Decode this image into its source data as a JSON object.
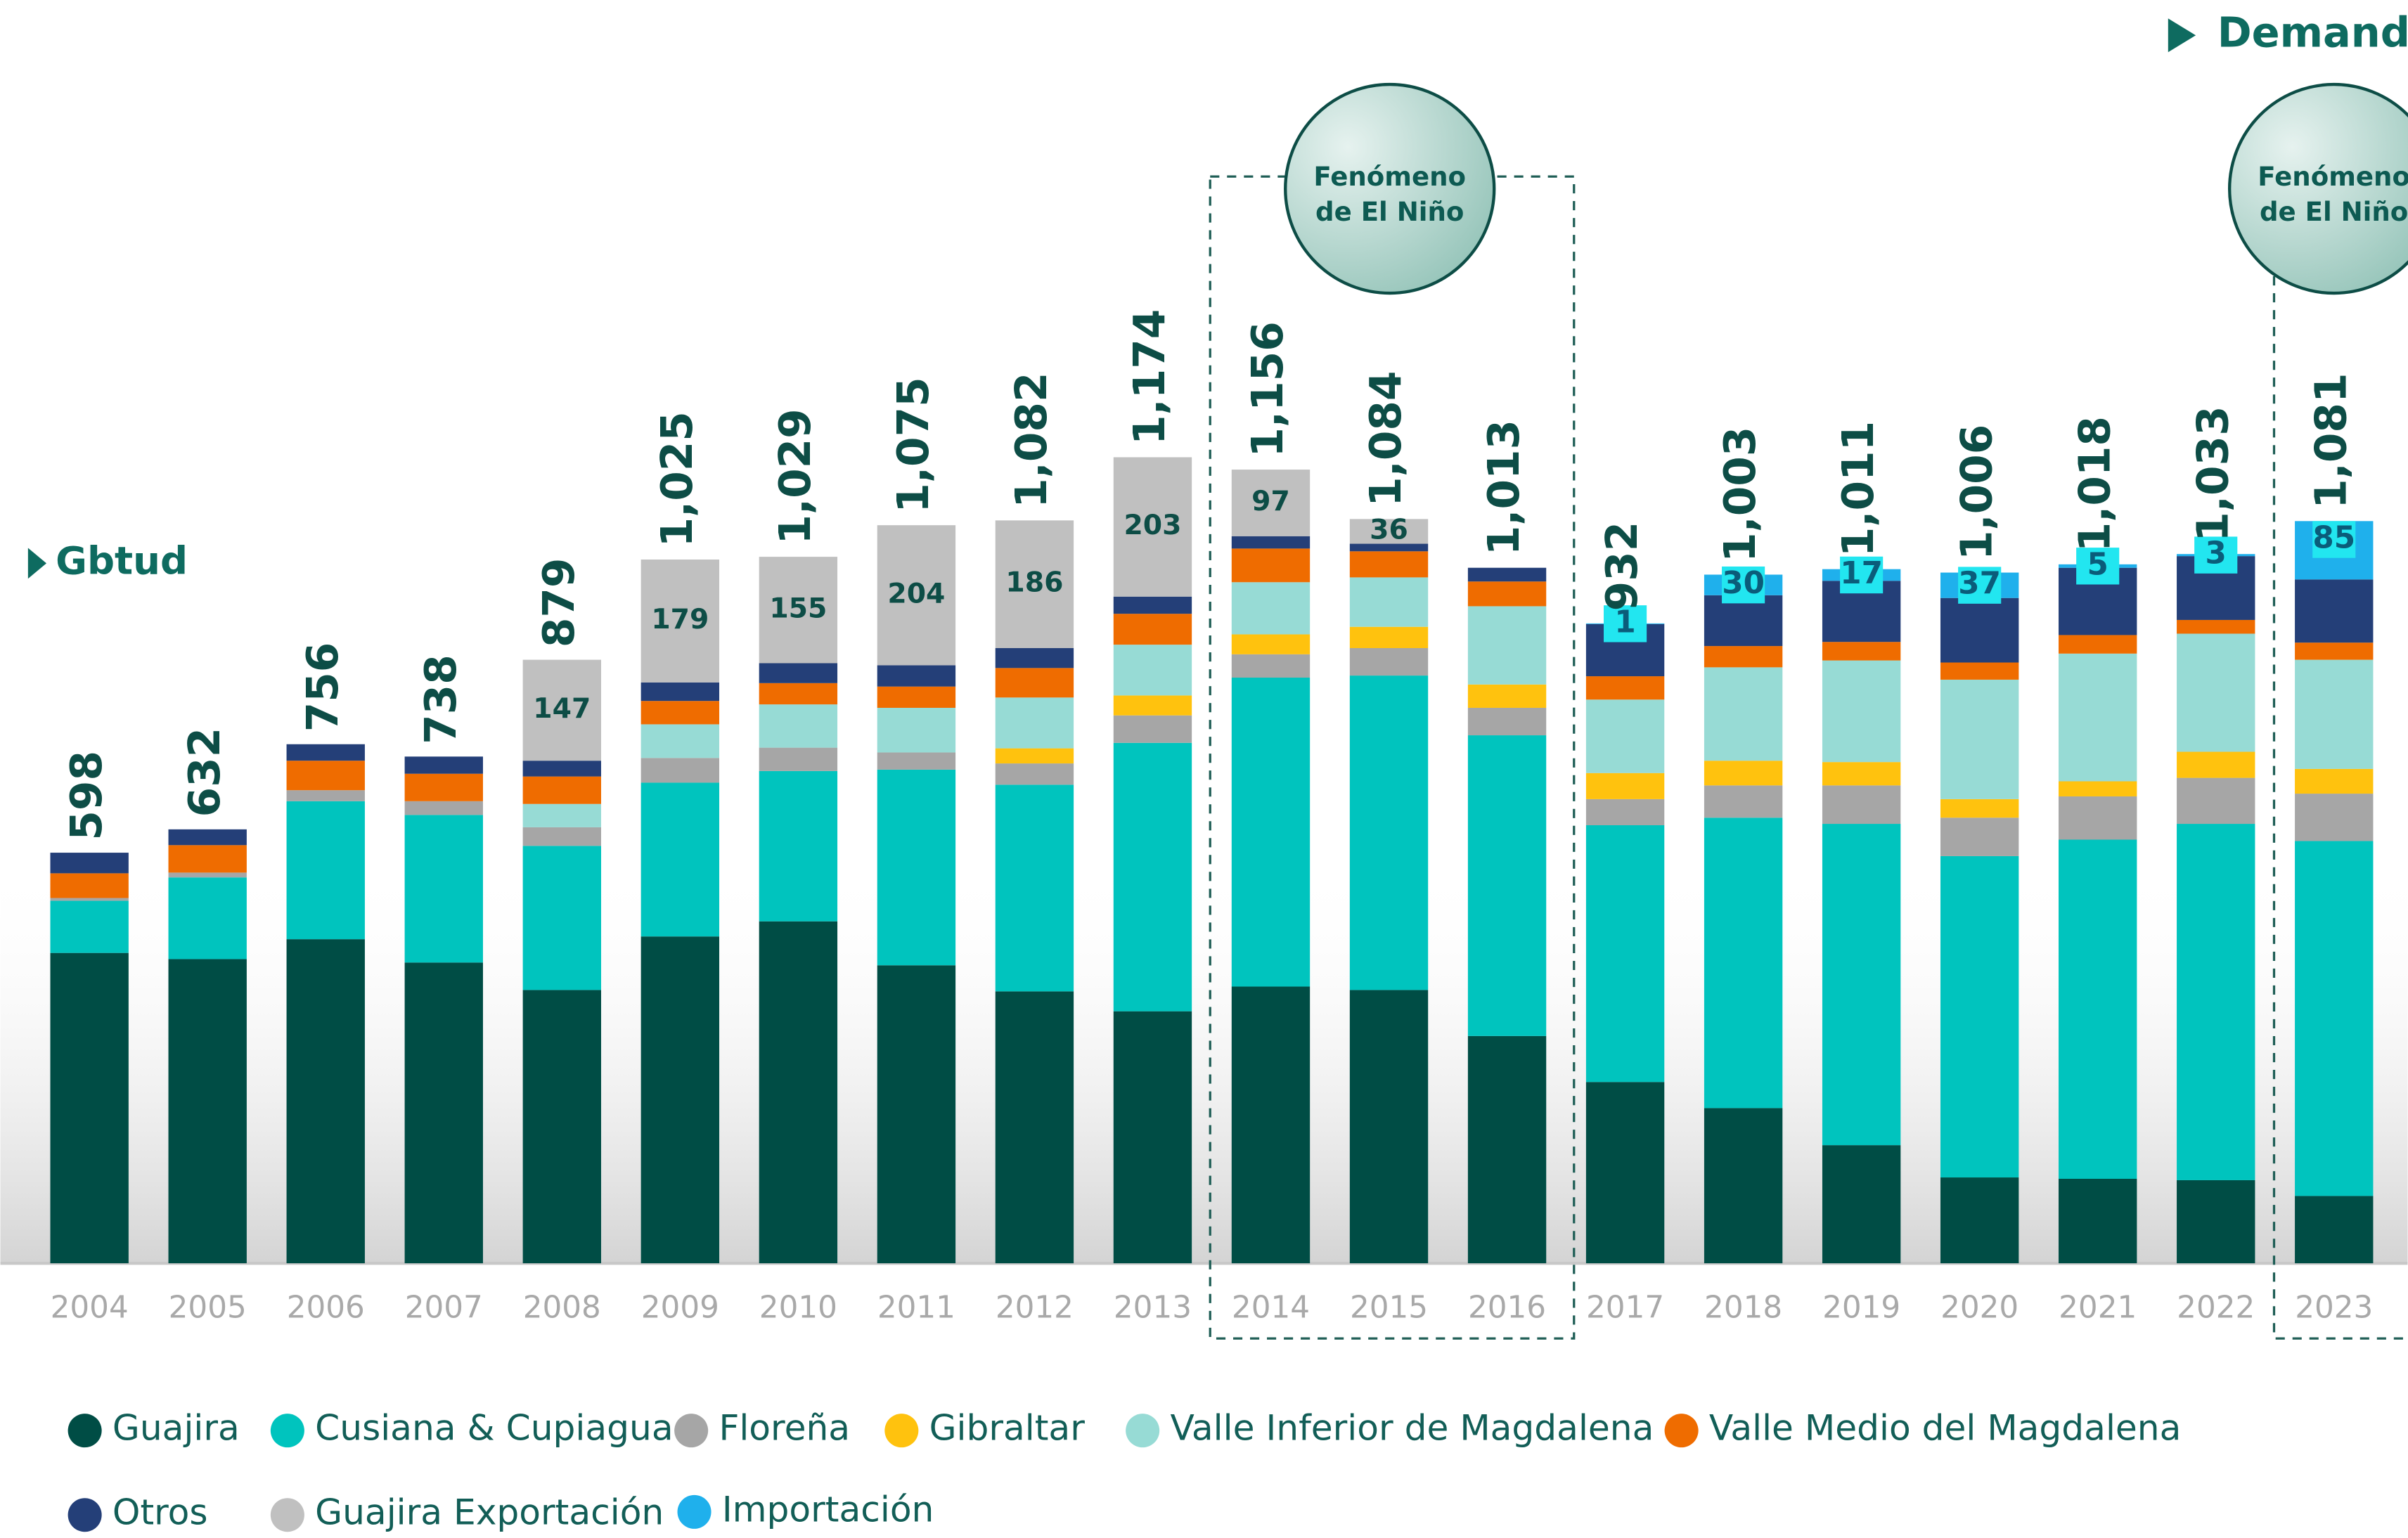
{
  "chart_data": {
    "type": "stacked_bar",
    "title": "Demanda",
    "unit_label": "Gbtud",
    "categories": [
      "2004",
      "2005",
      "2006",
      "2007",
      "2008",
      "2009",
      "2010",
      "2011",
      "2012",
      "2013",
      "2014",
      "2015",
      "2016",
      "2017",
      "2018",
      "2019",
      "2020",
      "2021",
      "2022",
      "2023"
    ],
    "series": [
      {
        "name": "Guajira",
        "color": "#004d45",
        "values": [
          452,
          443,
          472,
          438,
          398,
          476,
          498,
          434,
          396,
          367,
          403,
          398,
          331,
          264,
          226,
          172,
          125,
          123,
          121,
          98
        ]
      },
      {
        "name": "Cusiana & Cupiagua",
        "color": "#00c4be",
        "values": [
          76,
          119,
          201,
          215,
          210,
          224,
          219,
          285,
          301,
          391,
          450,
          458,
          438,
          374,
          423,
          468,
          468,
          494,
          519,
          517
        ]
      },
      {
        "name": "Floreña",
        "color": "#a6a6a6",
        "values": [
          4,
          7,
          16,
          20,
          27,
          36,
          34,
          25,
          31,
          40,
          34,
          40,
          40,
          38,
          47,
          56,
          56,
          63,
          67,
          69
        ]
      },
      {
        "name": "Gibraltar",
        "color": "#ffc20e",
        "values": [
          null,
          null,
          null,
          null,
          null,
          null,
          null,
          null,
          22,
          29,
          29,
          31,
          34,
          38,
          36,
          34,
          27,
          22,
          38,
          36
        ]
      },
      {
        "name": "Valle Inferior de Magdalena",
        "color": "#97dbd5",
        "values": [
          null,
          null,
          null,
          null,
          34,
          49,
          63,
          65,
          74,
          74,
          76,
          72,
          114,
          107,
          136,
          148,
          174,
          186,
          172,
          159
        ]
      },
      {
        "name": "Valle Medio del Magdalena",
        "color": "#ef6c00",
        "values": [
          36,
          40,
          43,
          40,
          40,
          34,
          31,
          31,
          43,
          45,
          49,
          38,
          36,
          34,
          31,
          27,
          25,
          27,
          20,
          25
        ]
      },
      {
        "name": "Otros",
        "color": "#243f78",
        "values": [
          30,
          23,
          24,
          25,
          23,
          27,
          29,
          31,
          29,
          25,
          18,
          11,
          20,
          76,
          74,
          89,
          94,
          98,
          93,
          92
        ]
      },
      {
        "name": "Guajira Exportación",
        "color": "#c0c0c0",
        "labeled": true,
        "values": [
          null,
          null,
          null,
          null,
          147,
          179,
          155,
          204,
          186,
          203,
          97,
          36,
          null,
          null,
          null,
          null,
          null,
          null,
          null,
          null
        ]
      },
      {
        "name": "Importación",
        "color": "#1fb0ec",
        "labeled": true,
        "label_box": "#22e6f0",
        "values": [
          null,
          null,
          null,
          null,
          null,
          null,
          null,
          null,
          null,
          null,
          null,
          null,
          null,
          1,
          30,
          17,
          37,
          5,
          3,
          85
        ]
      }
    ],
    "totals": {
      "values": [
        598,
        632,
        756,
        738,
        879,
        1025,
        1029,
        1075,
        1082,
        1174,
        1156,
        1084,
        1013,
        932,
        1003,
        1011,
        1006,
        1018,
        1033,
        1081
      ],
      "value_labels": [
        "598",
        "632",
        "756",
        "738",
        "879",
        "1,025",
        "1,029",
        "1,075",
        "1,082",
        "1,174",
        "1,156",
        "1,084",
        "1,013",
        "932",
        "1,003",
        "1,011",
        "1,006",
        "1,018",
        "1,033",
        "1,081"
      ]
    },
    "ylim": [
      0,
      1840
    ],
    "annotations": [
      {
        "lines": [
          "Fenómeno",
          "de El Niño"
        ]
      },
      {
        "lines": [
          "Fenómeno",
          "de El Niño"
        ]
      }
    ]
  }
}
